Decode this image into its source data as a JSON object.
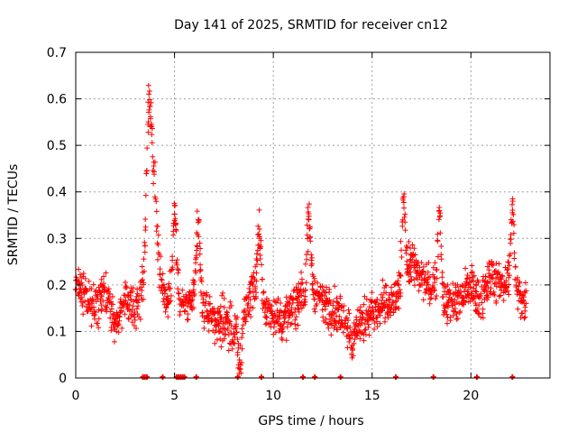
{
  "chart_data": {
    "type": "scatter",
    "title": "Day 141 of 2025, SRMTID for receiver cn12",
    "xlabel": "GPS time / hours",
    "ylabel": "SRMTID / TECUs",
    "xlim": [
      0,
      24
    ],
    "ylim": [
      0,
      0.7
    ],
    "x_ticks": [
      0,
      5,
      10,
      15,
      20
    ],
    "x_tick_labels": [
      "0",
      "5",
      "10",
      "15",
      "20"
    ],
    "y_ticks": [
      0,
      0.1,
      0.2,
      0.3,
      0.4,
      0.5,
      0.6,
      0.7
    ],
    "y_tick_labels": [
      "0",
      "0.1",
      "0.2",
      "0.3",
      "0.4",
      "0.5",
      "0.6",
      "0.7"
    ],
    "grid": true,
    "marker": "+",
    "color": "#ff0000",
    "x_range_hours": [
      0,
      22.8
    ],
    "approx_trend": {
      "x": [
        0,
        0.5,
        1,
        1.5,
        2,
        2.5,
        3,
        3.5,
        3.7,
        4,
        4.3,
        4.6,
        5,
        5.5,
        6,
        6.5,
        7,
        7.5,
        8,
        8.5,
        9,
        9.5,
        10,
        10.5,
        11,
        11.5,
        12,
        12.5,
        13,
        13.5,
        14,
        14.5,
        15,
        15.5,
        16,
        16.5,
        17,
        17.5,
        18,
        18.5,
        19,
        19.5,
        20,
        20.5,
        21,
        21.5,
        22,
        22.5,
        22.8
      ],
      "y": [
        0.21,
        0.17,
        0.15,
        0.18,
        0.11,
        0.17,
        0.15,
        0.2,
        0.45,
        0.4,
        0.2,
        0.17,
        0.2,
        0.15,
        0.18,
        0.15,
        0.13,
        0.12,
        0.1,
        0.14,
        0.2,
        0.15,
        0.14,
        0.12,
        0.15,
        0.18,
        0.2,
        0.16,
        0.15,
        0.13,
        0.11,
        0.12,
        0.14,
        0.15,
        0.16,
        0.2,
        0.25,
        0.21,
        0.2,
        0.18,
        0.16,
        0.17,
        0.2,
        0.16,
        0.22,
        0.2,
        0.21,
        0.17,
        0.17
      ]
    },
    "spikes": [
      {
        "x": 3.7,
        "y": 0.61
      },
      {
        "x": 5.0,
        "y": 0.37
      },
      {
        "x": 6.2,
        "y": 0.34
      },
      {
        "x": 9.3,
        "y": 0.32
      },
      {
        "x": 11.8,
        "y": 0.34
      },
      {
        "x": 16.6,
        "y": 0.39
      },
      {
        "x": 18.4,
        "y": 0.36
      },
      {
        "x": 22.1,
        "y": 0.355
      }
    ],
    "dips": [
      {
        "x": 8.3,
        "y": 0.02
      },
      {
        "x": 14.0,
        "y": 0.07
      }
    ],
    "zero_markers_x": [
      3.4,
      3.5,
      3.6,
      4.4,
      5.1,
      5.2,
      5.3,
      5.4,
      5.5,
      6.1,
      8.2,
      9.4,
      11.5,
      12.1,
      13.4,
      16.2,
      18.1,
      20.3,
      22.1
    ]
  }
}
